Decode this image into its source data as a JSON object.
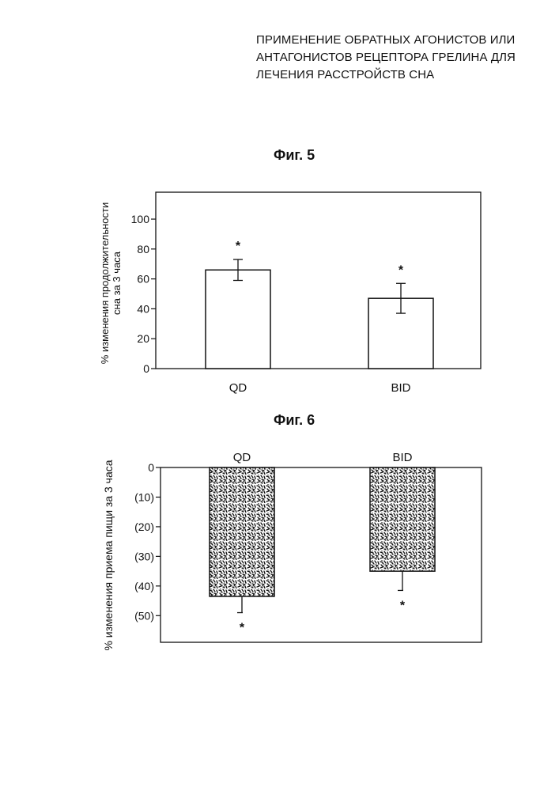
{
  "document": {
    "title_lines": [
      "ПРИМЕНЕНИЕ ОБРАТНЫХ АГОНИСТОВ ИЛИ",
      "АНТАГОНИСТОВ РЕЦЕПТОРА ГРЕЛИНА ДЛЯ",
      "ЛЕЧЕНИЯ РАССТРОЙСТВ СНА"
    ]
  },
  "chart_data": [
    {
      "type": "bar",
      "figure_label": "Фиг. 5",
      "categories": [
        "QD",
        "BID"
      ],
      "values": [
        66,
        47
      ],
      "errors": [
        7,
        10
      ],
      "significance": [
        "*",
        "*"
      ],
      "ylabel_lines": [
        "% изменения продолжительности",
        "сна за 3 часа"
      ],
      "ylim": [
        0,
        118
      ],
      "yticks": [
        0,
        20,
        40,
        60,
        80,
        100
      ],
      "ytick_labels": [
        "0",
        "20",
        "40",
        "60",
        "80",
        "100"
      ],
      "bar_fill": "#ffffff",
      "grid": false
    },
    {
      "type": "bar",
      "figure_label": "Фиг. 6",
      "categories": [
        "QD",
        "BID"
      ],
      "values": [
        -43.5,
        -35
      ],
      "errors": [
        5.5,
        6.5
      ],
      "significance": [
        "*",
        "*"
      ],
      "ylabel_lines": [
        "% изменения приема пищи за 3 часа"
      ],
      "ylim": [
        -59,
        0
      ],
      "yticks": [
        0,
        -10,
        -20,
        -30,
        -40,
        -50
      ],
      "ytick_labels": [
        "0",
        "(10)",
        "(20)",
        "(30)",
        "(40)",
        "(50)"
      ],
      "bar_fill": "stippled",
      "grid": false
    }
  ]
}
